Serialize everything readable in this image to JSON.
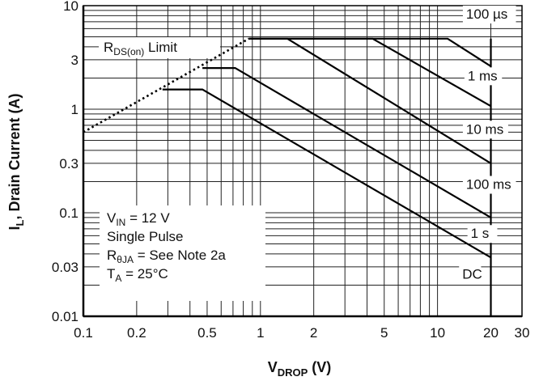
{
  "chart_data": {
    "type": "line",
    "title": "",
    "xlabel": {
      "main": "V",
      "sub": "DROP",
      "suffix": " (V)"
    },
    "ylabel": {
      "main": "I",
      "sub": "L",
      "suffix": ", Drain Current (A)"
    },
    "xscale": "log",
    "yscale": "log",
    "xlim": [
      0.1,
      30
    ],
    "ylim": [
      0.01,
      10
    ],
    "grid": true,
    "x_ticks": [
      {
        "v": 0.1,
        "label": "0.1"
      },
      {
        "v": 0.2,
        "label": "0.2"
      },
      {
        "v": 0.5,
        "label": "0.5"
      },
      {
        "v": 1,
        "label": "1"
      },
      {
        "v": 2,
        "label": "2"
      },
      {
        "v": 5,
        "label": "5"
      },
      {
        "v": 10,
        "label": "10"
      },
      {
        "v": 20,
        "label": "20"
      },
      {
        "v": 30,
        "label": "30"
      }
    ],
    "y_ticks": [
      {
        "v": 10,
        "label": "10"
      },
      {
        "v": 3,
        "label": "3"
      },
      {
        "v": 1,
        "label": "1"
      },
      {
        "v": 0.3,
        "label": "0.3"
      },
      {
        "v": 0.1,
        "label": "0.1"
      },
      {
        "v": 0.03,
        "label": "0.03"
      },
      {
        "v": 0.01,
        "label": "0.01"
      }
    ],
    "series": [
      {
        "name": "100 µs",
        "points": [
          [
            0.86,
            4.8
          ],
          [
            11.4,
            4.8
          ],
          [
            20,
            2.6
          ]
        ]
      },
      {
        "name": "1 ms",
        "points": [
          [
            0.86,
            4.8
          ],
          [
            4.3,
            4.8
          ],
          [
            20,
            1.07
          ]
        ]
      },
      {
        "name": "10 ms",
        "points": [
          [
            0.86,
            4.8
          ],
          [
            1.42,
            4.8
          ],
          [
            20,
            0.3
          ]
        ]
      },
      {
        "name": "100 ms",
        "points": [
          [
            0.47,
            2.5
          ],
          [
            0.72,
            2.5
          ],
          [
            20,
            0.09
          ]
        ]
      },
      {
        "name": "1 s",
        "points": [
          [
            0.28,
            1.55
          ],
          [
            0.47,
            1.55
          ],
          [
            20,
            0.037
          ]
        ]
      },
      {
        "name": "DC",
        "points": [
          [
            20,
            4.8
          ],
          [
            20,
            0.01
          ]
        ]
      }
    ],
    "rds_limit": {
      "name": "R_DS(on) Limit",
      "points": [
        [
          0.1,
          0.6
        ],
        [
          0.86,
          4.8
        ]
      ]
    },
    "annotations": [
      {
        "text": "100 µs",
        "at": [
          14.5,
          7.5
        ]
      },
      {
        "text": "1 ms",
        "at": [
          14.8,
          1.9
        ]
      },
      {
        "text": "10 ms",
        "at": [
          14.5,
          0.58
        ]
      },
      {
        "text": "100 ms",
        "at": [
          14.5,
          0.17
        ]
      },
      {
        "text": "1 s",
        "at": [
          15.4,
          0.057
        ]
      },
      {
        "text": "DC",
        "at": [
          13.8,
          0.023
        ]
      }
    ],
    "conditions": [
      {
        "main": "V",
        "sub": "IN",
        "rest": " = 12 V"
      },
      {
        "main": "Single Pulse",
        "sub": "",
        "rest": ""
      },
      {
        "main": "R",
        "sub": "θJA",
        "rest": " = See Note 2a"
      },
      {
        "main": "T",
        "sub": "A",
        "rest": " = 25°C"
      }
    ],
    "rds_label": {
      "main": "R",
      "sub": "DS(on)",
      "rest": " Limit"
    }
  }
}
